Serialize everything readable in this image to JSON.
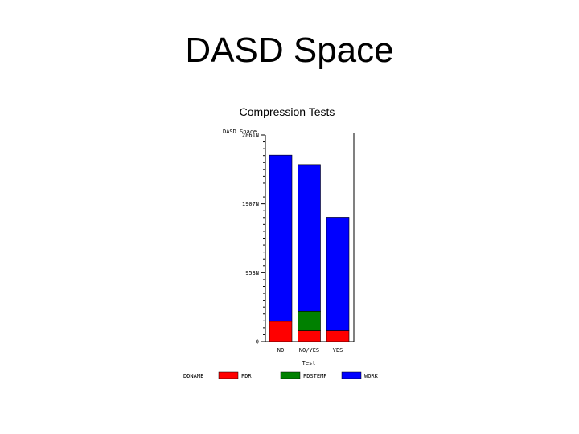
{
  "slide": {
    "title": "DASD Space"
  },
  "chart_data": {
    "type": "bar",
    "stacked": true,
    "title": "Compression Tests",
    "ylabel": "DASD Space",
    "xlabel": "Test",
    "categories": [
      "NO",
      "NO/YES",
      "YES"
    ],
    "yticks": [
      {
        "value": 0,
        "label": "0"
      },
      {
        "value": 95300000,
        "label": "953N"
      },
      {
        "value": 190700000,
        "label": "1907N"
      },
      {
        "value": 286000000,
        "label": "2861N"
      }
    ],
    "ylim": [
      0,
      286000000
    ],
    "minor_ticks_per_interval": 9,
    "series": [
      {
        "name": "PDR",
        "color": "#ff0000",
        "values": [
          28000000,
          15000000,
          15000000
        ]
      },
      {
        "name": "PDSTEMP",
        "color": "#008000",
        "values": [
          0,
          27000000,
          0
        ]
      },
      {
        "name": "WORK",
        "color": "#0000ff",
        "values": [
          230000000,
          203000000,
          157000000
        ]
      }
    ],
    "legend": {
      "label": "DDNAME",
      "position": "bottom"
    }
  }
}
